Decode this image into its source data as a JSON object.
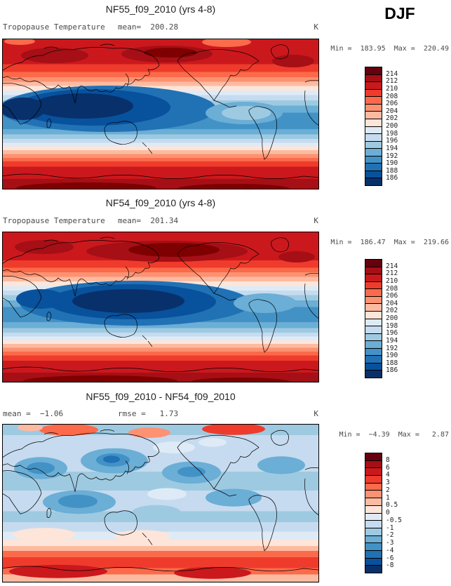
{
  "season": "DJF",
  "panels": [
    {
      "title": "NF55_f09_2010 (yrs 4-8)",
      "left_label": "Tropopause Temperature",
      "mid_label": "mean=  200.28",
      "units": "K",
      "minmax": "Min =  183.95  Max =  220.49",
      "colorbar": {
        "levels": [
          "214",
          "212",
          "210",
          "208",
          "206",
          "204",
          "202",
          "200",
          "198",
          "196",
          "194",
          "192",
          "190",
          "188",
          "186"
        ],
        "colors": [
          "#67000d",
          "#a50f15",
          "#cb181d",
          "#ef3b2c",
          "#fb6a4a",
          "#fc9272",
          "#fcbba1",
          "#fee5d9",
          "#deebf7",
          "#c6dbef",
          "#9ecae1",
          "#6baed6",
          "#4292c6",
          "#2171b5",
          "#08519c",
          "#08306b"
        ]
      }
    },
    {
      "title": "NF54_f09_2010 (yrs 4-8)",
      "left_label": "Tropopause Temperature",
      "mid_label": "mean=  201.34",
      "units": "K",
      "minmax": "Min =  186.47  Max =  219.66",
      "colorbar": {
        "levels": [
          "214",
          "212",
          "210",
          "208",
          "206",
          "204",
          "202",
          "200",
          "198",
          "196",
          "194",
          "192",
          "190",
          "188",
          "186"
        ],
        "colors": [
          "#67000d",
          "#a50f15",
          "#cb181d",
          "#ef3b2c",
          "#fb6a4a",
          "#fc9272",
          "#fcbba1",
          "#fee5d9",
          "#deebf7",
          "#c6dbef",
          "#9ecae1",
          "#6baed6",
          "#4292c6",
          "#2171b5",
          "#08519c",
          "#08306b"
        ]
      }
    },
    {
      "title": "NF55_f09_2010 - NF54_f09_2010",
      "left_label": "mean =  −1.06",
      "mid_label": "rmse =   1.73",
      "units": "K",
      "minmax": "Min =  −4.39  Max =   2.87",
      "colorbar": {
        "levels": [
          "8",
          "6",
          "4",
          "3",
          "2",
          "1",
          "0.5",
          "0",
          "-0.5",
          "-1",
          "-2",
          "-3",
          "-4",
          "-6",
          "-8"
        ],
        "colors": [
          "#67000d",
          "#a50f15",
          "#cb181d",
          "#ef3b2c",
          "#fb6a4a",
          "#fc9272",
          "#fcbba1",
          "#fee5d9",
          "#deebf7",
          "#c6dbef",
          "#9ecae1",
          "#6baed6",
          "#4292c6",
          "#2171b5",
          "#08519c",
          "#08306b"
        ]
      }
    }
  ],
  "chart_data": [
    {
      "type": "heatmap",
      "title": "NF55_f09_2010 (yrs 4-8)",
      "variable": "Tropopause Temperature",
      "season": "DJF",
      "units": "K",
      "mean": 200.28,
      "min": 183.95,
      "max": 220.49,
      "contour_levels": [
        186,
        188,
        190,
        192,
        194,
        196,
        198,
        200,
        202,
        204,
        206,
        208,
        210,
        212,
        214
      ],
      "projection": "global latitude-longitude map, Pacific-centered",
      "legend_position": "right",
      "pattern": "warm (red) high latitudes and polar regions, cold (dark blue) tropical band with coldest pool over Indo-Pacific"
    },
    {
      "type": "heatmap",
      "title": "NF54_f09_2010 (yrs 4-8)",
      "variable": "Tropopause Temperature",
      "season": "DJF",
      "units": "K",
      "mean": 201.34,
      "min": 186.47,
      "max": 219.66,
      "contour_levels": [
        186,
        188,
        190,
        192,
        194,
        196,
        198,
        200,
        202,
        204,
        206,
        208,
        210,
        212,
        214
      ],
      "projection": "global latitude-longitude map, Pacific-centered",
      "legend_position": "right",
      "pattern": "warm (red) high latitudes, cold tropical band with broad dark-blue cold pool over central/west Pacific"
    },
    {
      "type": "heatmap",
      "title": "NF55_f09_2010 - NF54_f09_2010",
      "variable": "Tropopause Temperature difference",
      "season": "DJF",
      "units": "K",
      "mean": -1.06,
      "rmse": 1.73,
      "min": -4.39,
      "max": 2.87,
      "contour_levels": [
        -8,
        -6,
        -4,
        -3,
        -2,
        -1,
        -0.5,
        0,
        0.5,
        1,
        2,
        3,
        4,
        6,
        8
      ],
      "projection": "global latitude-longitude map, Pacific-centered",
      "legend_position": "right",
      "pattern": "mostly weak negative (light blue) differences globally with scattered −2 to −3 K blobs; positive (red) band over southern high latitudes and patches near north edge"
    }
  ]
}
